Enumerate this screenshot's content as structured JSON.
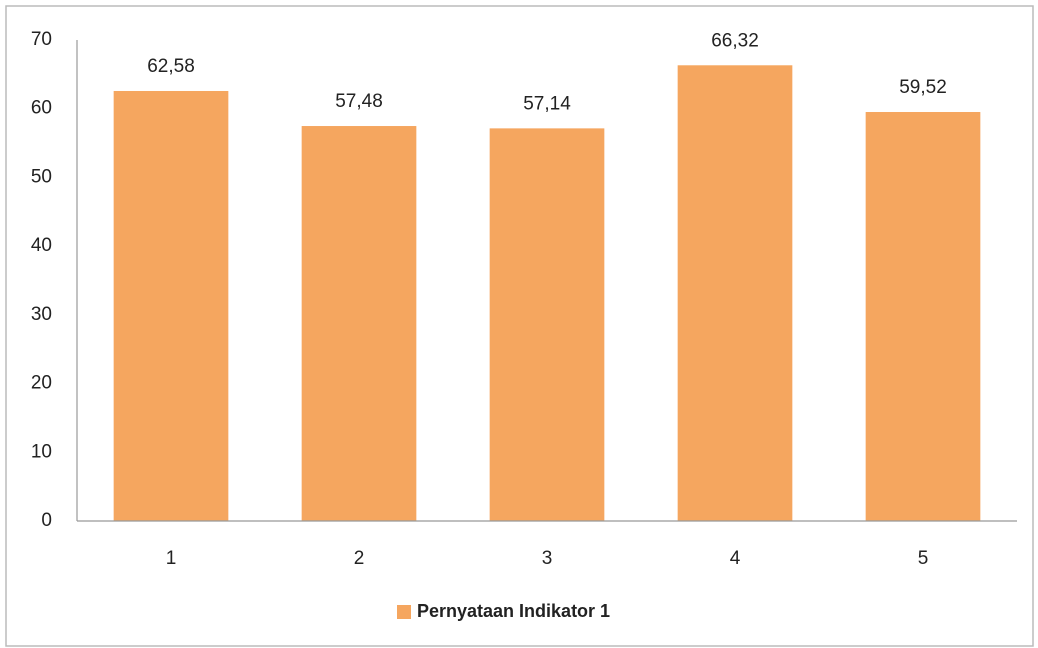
{
  "chart_data": {
    "type": "bar",
    "categories": [
      "1",
      "2",
      "3",
      "4",
      "5"
    ],
    "series": [
      {
        "name": "Pernyataan Indikator 1",
        "color": "#f5a65f",
        "values": [
          62.58,
          57.48,
          57.14,
          66.32,
          59.52
        ],
        "value_labels": [
          "62,58",
          "57,48",
          "57,14",
          "66,32",
          "59,52"
        ]
      }
    ],
    "ylim": [
      0,
      70
    ],
    "yticks": [
      0,
      10,
      20,
      30,
      40,
      50,
      60,
      70
    ],
    "grid": false,
    "legend": "bottom"
  }
}
